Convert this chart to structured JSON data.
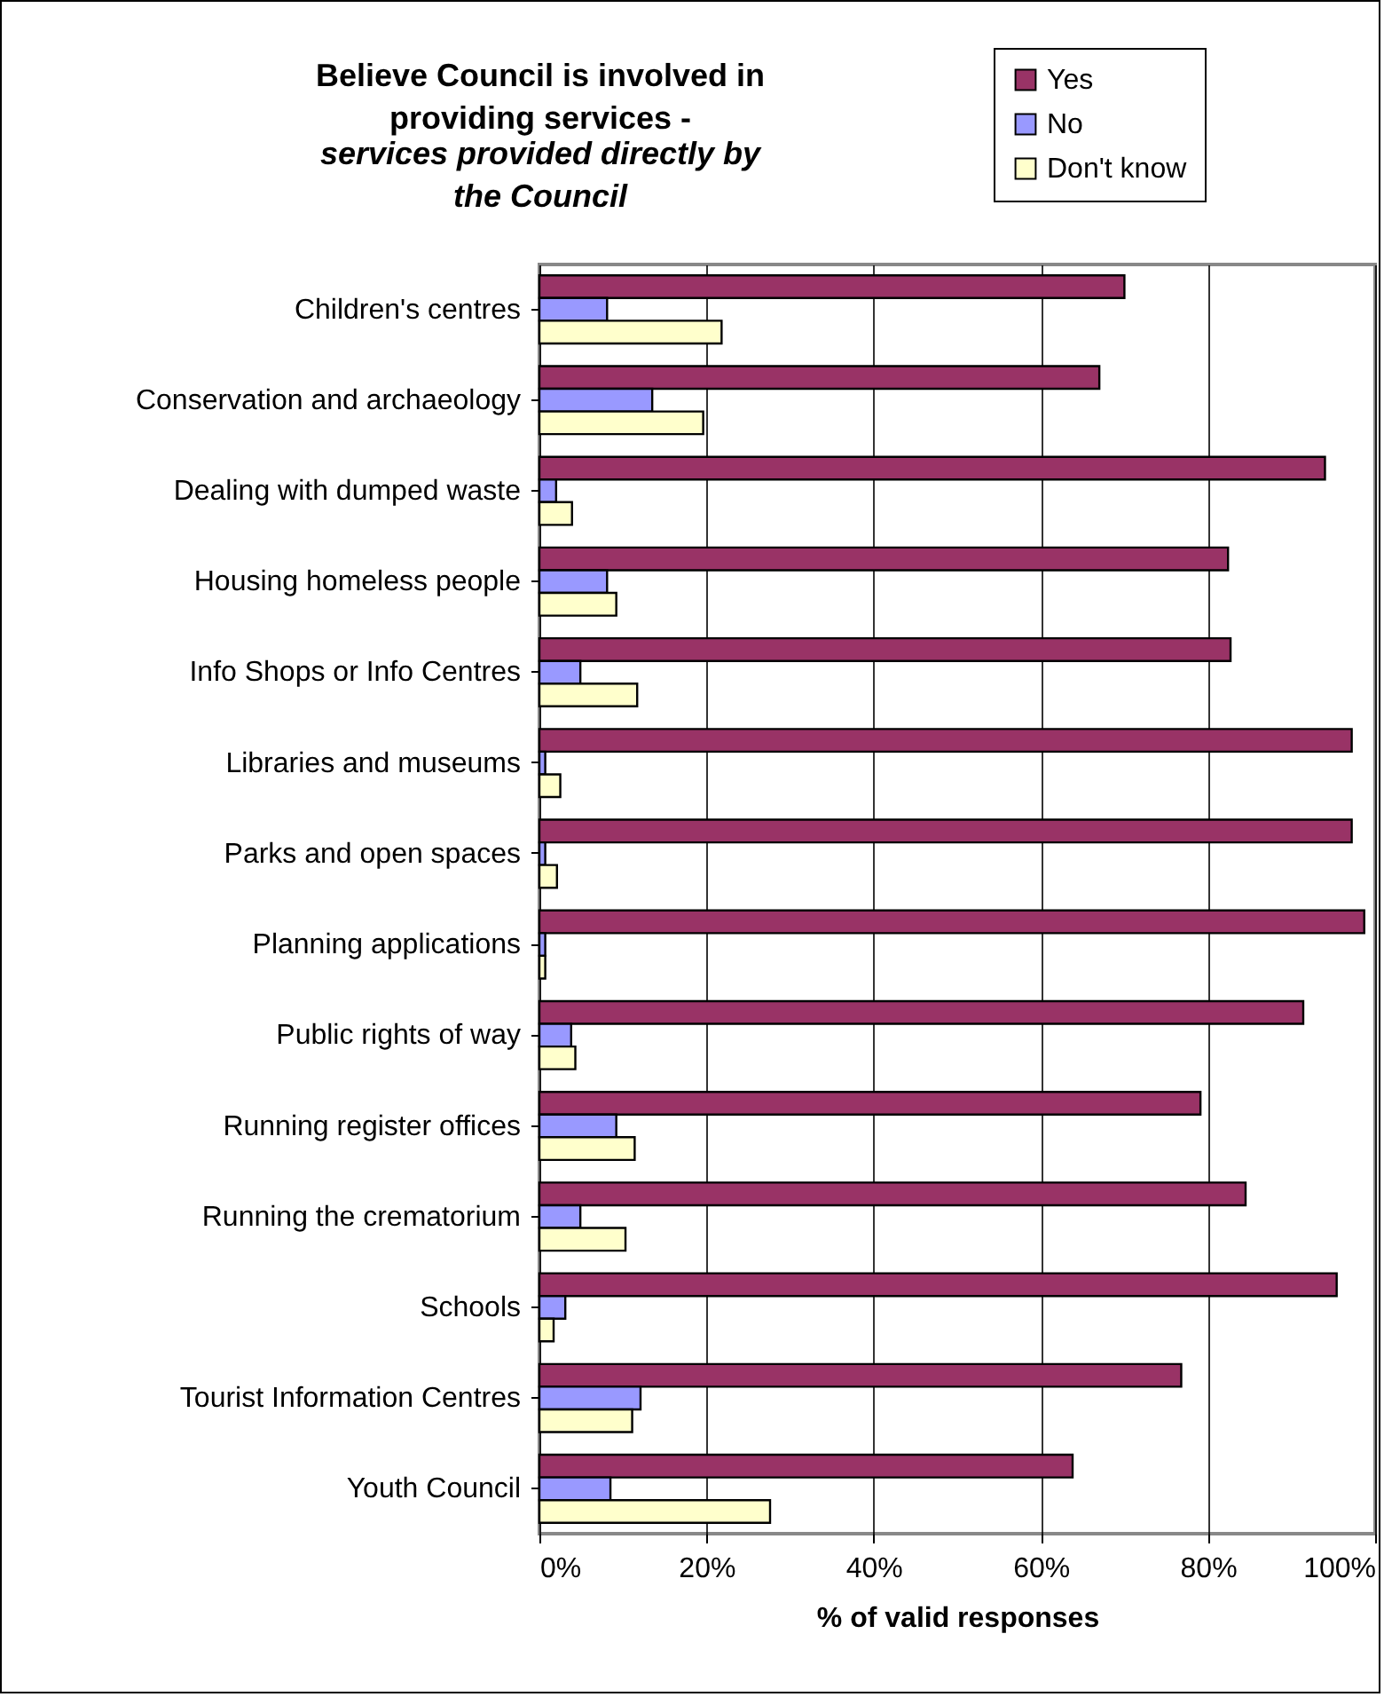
{
  "chart_data": {
    "type": "bar",
    "orientation": "horizontal",
    "title": "Believe Council is involved in providing services -",
    "subtitle": "services provided directly by the Council",
    "xlabel": "% of valid responses",
    "categories": [
      "Children's centres",
      "Conservation and archaeology",
      "Dealing with dumped waste",
      "Housing homeless people",
      "Info Shops or Info Centres",
      "Libraries and museums",
      "Parks and open spaces",
      "Planning applications",
      "Public rights of way",
      "Running register offices",
      "Running the crematorium",
      "Schools",
      "Tourist Information Centres",
      "Youth Council"
    ],
    "series": [
      {
        "name": "Yes",
        "color": "#993366",
        "values": [
          70,
          67,
          94,
          82.4,
          82.7,
          97.2,
          97.2,
          98.7,
          91.4,
          79.1,
          84.5,
          95.4,
          76.8,
          63.8
        ]
      },
      {
        "name": "No",
        "color": "#9999ff",
        "values": [
          8.1,
          13.5,
          2,
          8.1,
          4.9,
          0.7,
          0.7,
          0.7,
          3.8,
          9.2,
          4.9,
          3.1,
          12.1,
          8.5
        ]
      },
      {
        "name": "Don't know",
        "color": "#ffffcc",
        "values": [
          21.8,
          19.6,
          3.9,
          9.2,
          11.7,
          2.5,
          2.1,
          0.7,
          4.3,
          11.4,
          10.3,
          1.7,
          11.1,
          27.6
        ]
      }
    ],
    "xlim": [
      0,
      100
    ],
    "xticks": [
      {
        "value": 0,
        "label": "0%"
      },
      {
        "value": 20,
        "label": "20%"
      },
      {
        "value": 40,
        "label": "40%"
      },
      {
        "value": 60,
        "label": "60%"
      },
      {
        "value": 80,
        "label": "80%"
      },
      {
        "value": 100,
        "label": "100%"
      }
    ],
    "grid": "x",
    "legend": "top right"
  }
}
